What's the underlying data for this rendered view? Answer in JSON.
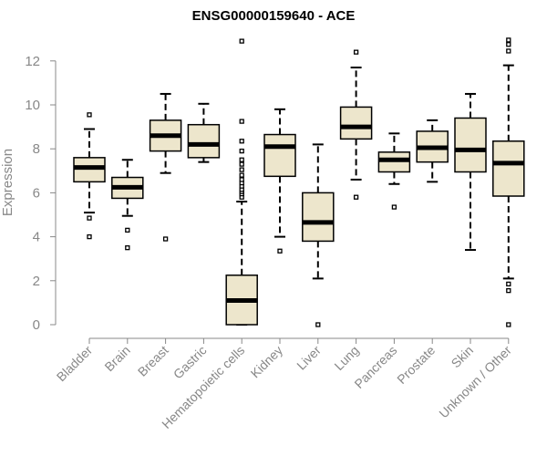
{
  "chart_data": {
    "type": "boxplot",
    "title": "ENSG00000159640 - ACE",
    "xlabel": "",
    "ylabel": "Expression",
    "ylim": [
      0,
      13
    ],
    "yticks": [
      0,
      2,
      4,
      6,
      8,
      10,
      12
    ],
    "colors": {
      "box_fill": "#ede6cc",
      "stroke": "#000000",
      "axis_text": "#888888"
    },
    "categories": [
      "Bladder",
      "Brain",
      "Breast",
      "Gastric",
      "Hematopoietic cells",
      "Kidney",
      "Liver",
      "Lung",
      "Pancreas",
      "Prostate",
      "Skin",
      "Unknown / Other"
    ],
    "boxes": [
      {
        "name": "Bladder",
        "min": 5.1,
        "q1": 6.5,
        "median": 7.15,
        "q3": 7.6,
        "max": 8.9,
        "outliers": [
          9.55,
          4.85,
          4.0
        ]
      },
      {
        "name": "Brain",
        "min": 4.95,
        "q1": 5.75,
        "median": 6.25,
        "q3": 6.7,
        "max": 7.5,
        "outliers": [
          4.3,
          3.5
        ]
      },
      {
        "name": "Breast",
        "min": 6.9,
        "q1": 7.9,
        "median": 8.6,
        "q3": 9.3,
        "max": 10.5,
        "outliers": [
          3.9
        ]
      },
      {
        "name": "Gastric",
        "min": 7.4,
        "q1": 7.6,
        "median": 8.2,
        "q3": 9.1,
        "max": 10.05,
        "outliers": []
      },
      {
        "name": "Hematopoietic cells",
        "min": 0.0,
        "q1": 0.0,
        "median": 1.1,
        "q3": 2.25,
        "max": 5.6,
        "outliers": [
          5.8,
          5.95,
          6.05,
          6.15,
          6.3,
          6.45,
          6.6,
          6.8,
          7.05,
          7.3,
          7.5,
          7.9,
          8.35,
          9.25,
          12.9
        ]
      },
      {
        "name": "Kidney",
        "min": 4.0,
        "q1": 6.75,
        "median": 8.1,
        "q3": 8.65,
        "max": 9.8,
        "outliers": [
          3.35
        ]
      },
      {
        "name": "Liver",
        "min": 2.1,
        "q1": 3.8,
        "median": 4.65,
        "q3": 6.0,
        "max": 8.2,
        "outliers": [
          0.0
        ]
      },
      {
        "name": "Lung",
        "min": 6.6,
        "q1": 8.45,
        "median": 9.0,
        "q3": 9.9,
        "max": 11.7,
        "outliers": [
          12.4,
          5.8
        ]
      },
      {
        "name": "Pancreas",
        "min": 6.4,
        "q1": 6.95,
        "median": 7.5,
        "q3": 7.85,
        "max": 8.7,
        "outliers": [
          5.35
        ]
      },
      {
        "name": "Prostate",
        "min": 6.5,
        "q1": 7.4,
        "median": 8.05,
        "q3": 8.8,
        "max": 9.3,
        "outliers": []
      },
      {
        "name": "Skin",
        "min": 3.4,
        "q1": 6.95,
        "median": 7.95,
        "q3": 9.4,
        "max": 10.5,
        "outliers": []
      },
      {
        "name": "Unknown / Other",
        "min": 2.1,
        "q1": 5.85,
        "median": 7.35,
        "q3": 8.35,
        "max": 11.8,
        "outliers": [
          12.95,
          12.75,
          12.45,
          1.85,
          1.55,
          0.0
        ]
      }
    ]
  }
}
